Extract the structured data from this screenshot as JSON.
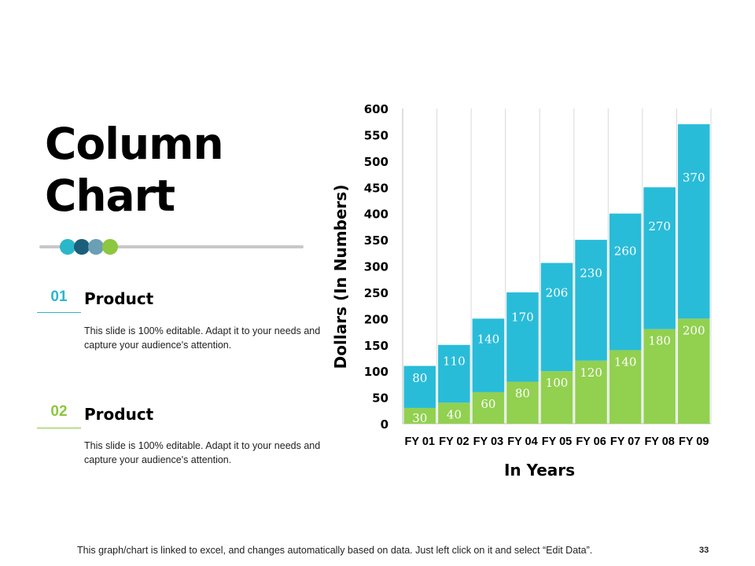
{
  "slide": {
    "title_line1": "Column",
    "title_line2": "Chart",
    "slider_dots": [
      "#2ab7ca",
      "#1b5f7a",
      "#6a9fb5",
      "#8dc63f"
    ],
    "items": [
      {
        "number": "01",
        "number_color": "#2ab7ca",
        "heading": "Product",
        "description": "This slide is 100% editable. Adapt it to your needs and capture your audience's attention."
      },
      {
        "number": "02",
        "number_color": "#8dc63f",
        "heading": "Product",
        "description": "This slide is 100% editable. Adapt it to your needs and capture your audience's attention."
      }
    ],
    "footer": "This graph/chart is linked to excel, and changes automatically based on data. Just left click on it and select “Edit Data”.",
    "page_number": "33"
  },
  "chart_data": {
    "type": "bar",
    "stacked": true,
    "categories": [
      "FY 01",
      "FY 02",
      "FY 03",
      "FY 04",
      "FY 05",
      "FY 06",
      "FY 07",
      "FY 08",
      "FY 09"
    ],
    "series": [
      {
        "color": "#92d050",
        "values": [
          30,
          40,
          60,
          80,
          100,
          120,
          140,
          180,
          200
        ]
      },
      {
        "color": "#29bcd8",
        "values": [
          80,
          110,
          140,
          170,
          206,
          230,
          260,
          270,
          370
        ]
      }
    ],
    "xlabel": "In Years",
    "ylabel": "Dollars (In Numbers)",
    "ylim": [
      0,
      600
    ],
    "yticks": [
      0,
      50,
      100,
      150,
      200,
      250,
      300,
      350,
      400,
      450,
      500,
      550,
      600
    ],
    "grid": "vertical"
  }
}
